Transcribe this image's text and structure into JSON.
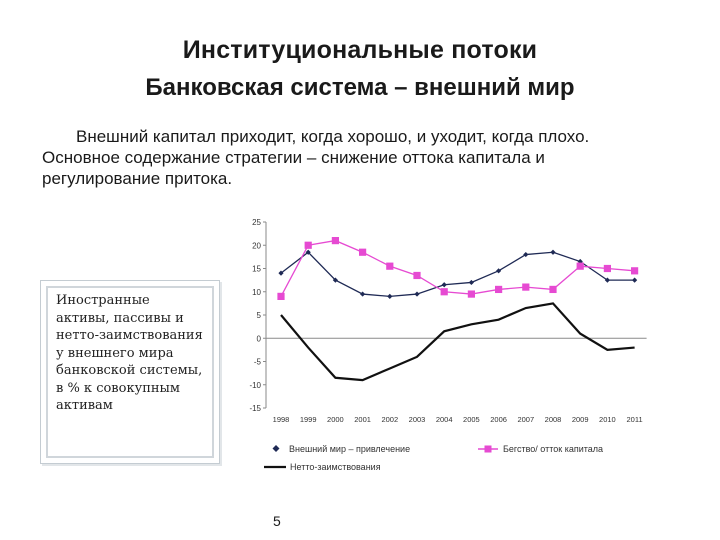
{
  "slide": {
    "title": "Институциональные потоки",
    "subtitle": "Банковская система – внешний мир",
    "intro": "Внешний капитал приходит, когда хорошо, и уходит, когда плохо. Основное содержание стратегии – снижение оттока капитала и регулирование притока.",
    "side_note": "Иностранные активы, пассивы и нетто-заимствования у внешнего мира банковской системы, в % к совокупным активам",
    "page_number": "5"
  },
  "chart_data": {
    "type": "line",
    "x": [
      "1998",
      "1999",
      "2000",
      "2001",
      "2002",
      "2003",
      "2004",
      "2005",
      "2006",
      "2007",
      "2008",
      "2009",
      "2010",
      "2011"
    ],
    "ylim": [
      -15,
      25
    ],
    "yticks": [
      25,
      20,
      15,
      10,
      5,
      0,
      -5,
      -10,
      -15
    ],
    "grid": false,
    "legend_position": "bottom",
    "series": [
      {
        "name": "Внешний мир – привлечение",
        "color": "#1f2a55",
        "marker": "diamond",
        "values": [
          14,
          18.5,
          12.5,
          9.5,
          9,
          9.5,
          11.5,
          12,
          14.5,
          18,
          18.5,
          16.5,
          12.5,
          12.5
        ]
      },
      {
        "name": "Бегство/ отток капитала",
        "color": "#e64ad2",
        "marker": "square",
        "values": [
          9,
          20,
          21,
          18.5,
          15.5,
          13.5,
          10,
          9.5,
          10.5,
          11,
          10.5,
          15.5,
          15,
          14.5
        ]
      },
      {
        "name": "Нетто-заимствования",
        "color": "#111111",
        "marker": "none",
        "values": [
          5,
          -2,
          -8.5,
          -9,
          -6.5,
          -4,
          1.5,
          3,
          4,
          6.5,
          7.5,
          1,
          -2.5,
          -2
        ]
      }
    ]
  }
}
